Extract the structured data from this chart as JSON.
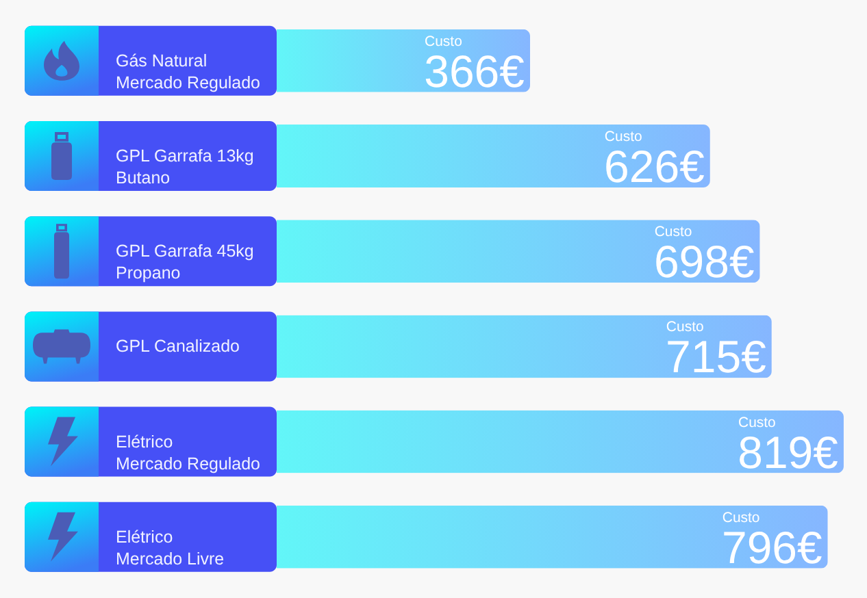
{
  "chart_data": {
    "type": "bar",
    "orientation": "horizontal",
    "categories": [
      "Gás Natural\nMercado Regulado",
      "GPL Garrafa 13kg\nButano",
      "GPL Garrafa 45kg\nPropano",
      "GPL Canalizado",
      "Elétrico\nMercado Regulado",
      "Elétrico\nMercado Livre"
    ],
    "values": [
      366,
      626,
      698,
      715,
      819,
      796
    ],
    "color": "#76d6fc",
    "value_labels": [
      "366€",
      "626€",
      "698€",
      "715€",
      "819€",
      "796€"
    ],
    "xlabel": "Custo",
    "tick_labels": "y"
  }
}
